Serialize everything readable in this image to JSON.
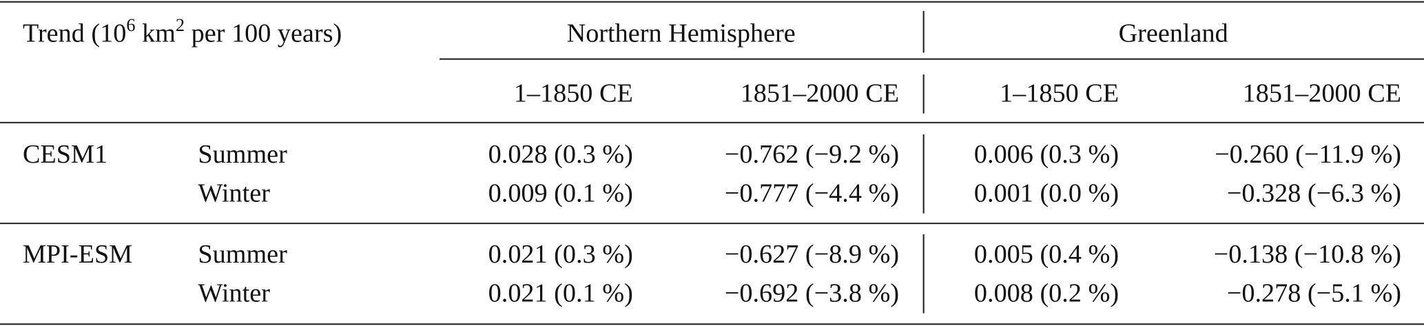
{
  "header": {
    "title": [
      "Trend (10",
      "6",
      " km",
      "2",
      " per 100 years)"
    ],
    "groups": [
      "Northern Hemisphere",
      "Greenland"
    ],
    "periods": [
      "1–1850 CE",
      "1851–2000 CE",
      "1–1850 CE",
      "1851–2000 CE"
    ]
  },
  "table": {
    "blocks": [
      {
        "model": "CESM1",
        "rows": [
          [
            "Summer",
            "0.028 (0.3 %)",
            "−0.762 (−9.2 %)",
            "0.006 (0.3 %)",
            "−0.260 (−11.9 %)"
          ],
          [
            "Winter",
            "0.009 (0.1 %)",
            "−0.777 (−4.4 %)",
            "0.001 (0.0 %)",
            "−0.328 (−6.3 %)"
          ]
        ]
      },
      {
        "model": "MPI-ESM",
        "rows": [
          [
            "Summer",
            "0.021 (0.3 %)",
            "−0.627 (−8.9 %)",
            "0.005 (0.4 %)",
            "−0.138 (−10.8 %)"
          ],
          [
            "Winter",
            "0.021 (0.1 %)",
            "−0.692 (−3.8 %)",
            "0.008 (0.2 %)",
            "−0.278 (−5.1 %)"
          ]
        ]
      }
    ]
  }
}
